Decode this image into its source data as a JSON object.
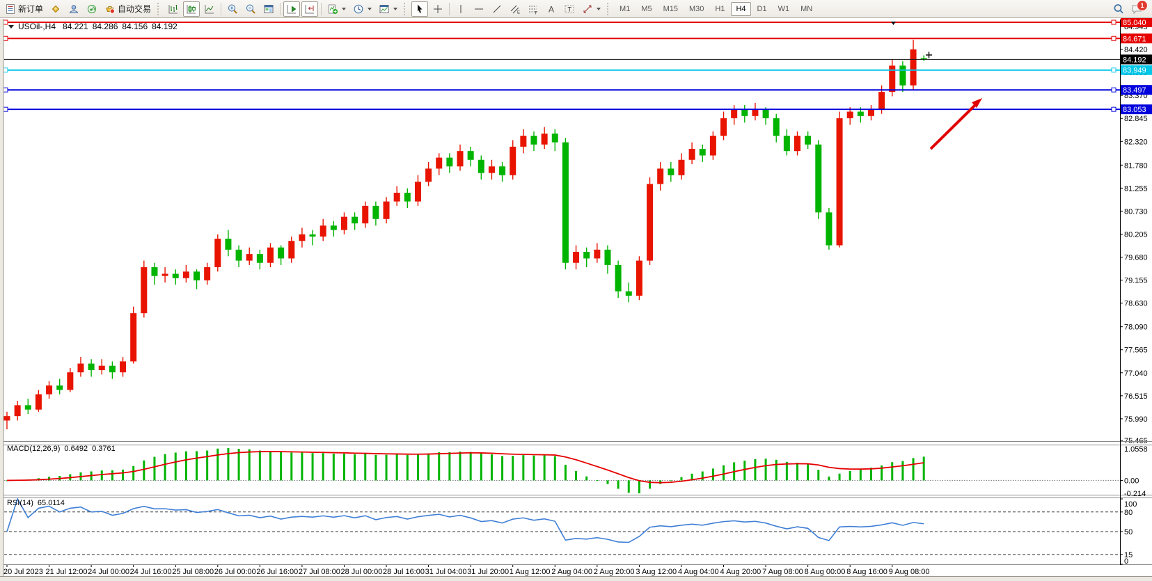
{
  "toolbar": {
    "new_order_label": "新订单",
    "autotrading_label": "自动交易",
    "timeframes": [
      "M1",
      "M5",
      "M15",
      "M30",
      "H1",
      "H4",
      "D1",
      "W1",
      "MN"
    ],
    "active_timeframe": "H4",
    "notification_count": "1"
  },
  "chart": {
    "symbol_period": "USOil-,H4",
    "open": "84.221",
    "high": "84.286",
    "low": "84.156",
    "close": "84.192"
  },
  "chart_data": {
    "type": "candlestick",
    "symbol": "USOil",
    "period": "H4",
    "colors": {
      "bull": "#e81400",
      "bear": "#00b400",
      "background": "#ffffff"
    },
    "candles": [
      [
        75.95,
        76.15,
        75.75,
        76.05
      ],
      [
        76.05,
        76.4,
        75.95,
        76.3
      ],
      [
        76.3,
        76.45,
        76.1,
        76.2
      ],
      [
        76.2,
        76.65,
        76.15,
        76.55
      ],
      [
        76.55,
        76.85,
        76.45,
        76.75
      ],
      [
        76.75,
        76.9,
        76.55,
        76.65
      ],
      [
        76.65,
        77.15,
        76.6,
        77.05
      ],
      [
        77.05,
        77.4,
        76.95,
        77.25
      ],
      [
        77.25,
        77.35,
        76.95,
        77.1
      ],
      [
        77.1,
        77.35,
        77.0,
        77.2
      ],
      [
        77.2,
        77.3,
        76.9,
        77.05
      ],
      [
        77.05,
        77.4,
        76.95,
        77.3
      ],
      [
        77.3,
        78.55,
        77.25,
        78.4
      ],
      [
        78.4,
        79.6,
        78.3,
        79.45
      ],
      [
        79.45,
        79.55,
        79.05,
        79.25
      ],
      [
        79.25,
        79.45,
        79.1,
        79.3
      ],
      [
        79.3,
        79.4,
        79.05,
        79.2
      ],
      [
        79.2,
        79.5,
        79.1,
        79.35
      ],
      [
        79.35,
        79.4,
        78.95,
        79.15
      ],
      [
        79.15,
        79.55,
        79.05,
        79.45
      ],
      [
        79.45,
        80.2,
        79.35,
        80.1
      ],
      [
        80.1,
        80.3,
        79.7,
        79.85
      ],
      [
        79.85,
        79.95,
        79.45,
        79.6
      ],
      [
        79.6,
        79.9,
        79.5,
        79.75
      ],
      [
        79.75,
        79.85,
        79.4,
        79.55
      ],
      [
        79.55,
        80.0,
        79.45,
        79.9
      ],
      [
        79.9,
        79.95,
        79.5,
        79.65
      ],
      [
        79.65,
        80.15,
        79.55,
        80.05
      ],
      [
        80.05,
        80.35,
        79.9,
        80.2
      ],
      [
        80.2,
        80.3,
        79.95,
        80.15
      ],
      [
        80.15,
        80.55,
        80.05,
        80.4
      ],
      [
        80.4,
        80.5,
        80.15,
        80.3
      ],
      [
        80.3,
        80.7,
        80.2,
        80.6
      ],
      [
        80.6,
        80.7,
        80.3,
        80.45
      ],
      [
        80.45,
        80.95,
        80.35,
        80.85
      ],
      [
        80.85,
        80.95,
        80.4,
        80.55
      ],
      [
        80.55,
        81.05,
        80.45,
        80.95
      ],
      [
        80.95,
        81.3,
        80.85,
        81.15
      ],
      [
        81.15,
        81.25,
        80.8,
        80.95
      ],
      [
        80.95,
        81.55,
        80.85,
        81.4
      ],
      [
        81.4,
        81.85,
        81.3,
        81.7
      ],
      [
        81.7,
        82.05,
        81.55,
        81.95
      ],
      [
        81.95,
        82.05,
        81.6,
        81.75
      ],
      [
        81.75,
        82.25,
        81.65,
        82.1
      ],
      [
        82.1,
        82.2,
        81.75,
        81.9
      ],
      [
        81.9,
        82.0,
        81.45,
        81.6
      ],
      [
        81.6,
        81.9,
        81.45,
        81.75
      ],
      [
        81.75,
        81.85,
        81.4,
        81.55
      ],
      [
        81.55,
        82.35,
        81.45,
        82.2
      ],
      [
        82.2,
        82.6,
        82.05,
        82.45
      ],
      [
        82.45,
        82.55,
        82.1,
        82.25
      ],
      [
        82.25,
        82.65,
        82.15,
        82.5
      ],
      [
        82.5,
        82.6,
        82.1,
        82.3
      ],
      [
        82.3,
        82.4,
        79.4,
        79.55
      ],
      [
        79.55,
        79.95,
        79.4,
        79.8
      ],
      [
        79.8,
        79.9,
        79.45,
        79.65
      ],
      [
        79.65,
        80.0,
        79.55,
        79.85
      ],
      [
        79.85,
        79.95,
        79.3,
        79.5
      ],
      [
        79.5,
        79.6,
        78.75,
        78.9
      ],
      [
        78.9,
        79.1,
        78.65,
        78.8
      ],
      [
        78.8,
        79.7,
        78.7,
        79.6
      ],
      [
        79.6,
        81.5,
        79.5,
        81.35
      ],
      [
        81.35,
        81.85,
        81.2,
        81.7
      ],
      [
        81.7,
        81.85,
        81.4,
        81.55
      ],
      [
        81.55,
        82.05,
        81.45,
        81.9
      ],
      [
        81.9,
        82.3,
        81.8,
        82.15
      ],
      [
        82.15,
        82.25,
        81.85,
        82.0
      ],
      [
        82.0,
        82.55,
        81.9,
        82.45
      ],
      [
        82.45,
        83.0,
        82.35,
        82.85
      ],
      [
        82.85,
        83.15,
        82.7,
        83.05
      ],
      [
        83.05,
        83.15,
        82.75,
        82.9
      ],
      [
        82.9,
        83.2,
        82.8,
        83.05
      ],
      [
        83.05,
        83.1,
        82.7,
        82.85
      ],
      [
        82.85,
        82.95,
        82.3,
        82.45
      ],
      [
        82.45,
        82.6,
        82.0,
        82.1
      ],
      [
        82.1,
        82.55,
        82.0,
        82.45
      ],
      [
        82.45,
        82.55,
        82.15,
        82.25
      ],
      [
        82.25,
        82.35,
        80.55,
        80.7
      ],
      [
        80.7,
        80.8,
        79.85,
        79.95
      ],
      [
        79.95,
        83.0,
        79.9,
        82.85
      ],
      [
        82.85,
        83.1,
        82.7,
        83.0
      ],
      [
        83.0,
        83.1,
        82.75,
        82.9
      ],
      [
        82.9,
        83.15,
        82.8,
        83.05
      ],
      [
        83.05,
        83.6,
        82.95,
        83.45
      ],
      [
        83.45,
        84.2,
        83.35,
        84.05
      ],
      [
        84.05,
        84.15,
        83.45,
        83.6
      ],
      [
        83.6,
        84.64,
        83.5,
        84.42
      ],
      [
        84.221,
        84.286,
        84.156,
        84.192
      ]
    ],
    "time_labels": [
      "20 Jul 2023",
      "21 Jul 12:00",
      "24 Jul 00:00",
      "24 Jul 16:00",
      "25 Jul 08:00",
      "26 Jul 00:00",
      "26 Jul 16:00",
      "27 Jul 08:00",
      "28 Jul 00:00",
      "28 Jul 16:00",
      "31 Jul 04:00",
      "31 Jul 20:00",
      "1 Aug 12:00",
      "2 Aug 04:00",
      "2 Aug 20:00",
      "3 Aug 12:00",
      "4 Aug 04:00",
      "4 Aug 20:00",
      "7 Aug 08:00",
      "8 Aug 00:00",
      "8 Aug 16:00",
      "9 Aug 08:00"
    ],
    "price_ticks": [
      "84.945",
      "84.420",
      "83.895",
      "83.370",
      "82.845",
      "82.320",
      "81.780",
      "81.255",
      "80.730",
      "80.205",
      "79.680",
      "79.155",
      "78.630",
      "78.090",
      "77.565",
      "77.040",
      "76.515",
      "75.990",
      "75.465"
    ],
    "hlines": [
      {
        "price": 85.04,
        "label": "85.040",
        "color": "#e60000"
      },
      {
        "price": 84.671,
        "label": "84.671",
        "color": "#e60000"
      },
      {
        "price": 83.949,
        "label": "83.949",
        "color": "#00c6e8"
      },
      {
        "price": 83.497,
        "label": "83.497",
        "color": "#0000dd"
      },
      {
        "price": 83.053,
        "label": "83.053",
        "color": "#0000dd"
      }
    ],
    "current_price": {
      "price": 84.192,
      "label": "84.192",
      "color": "#111111"
    },
    "indicators": {
      "macd": {
        "label": "MACD(12,26,9)",
        "main_value": "0.6492",
        "signal_value": "0.3761",
        "axis_labels": [
          "1.0558",
          "0.00",
          "-0.214"
        ],
        "histogram_color": "#00b400",
        "signal_color": "#e60000"
      },
      "rsi": {
        "label": "RSI(14)",
        "value": "65.0114",
        "levels": [
          "100",
          "80",
          "50",
          "15",
          "0"
        ],
        "dashed_levels": [
          80,
          50,
          15
        ],
        "line_color": "#3f7fd6"
      }
    },
    "annotations": {
      "arrow": {
        "type": "trend-arrow",
        "color": "#e00000",
        "from": [
          1337,
          214
        ],
        "to": [
          1411,
          141
        ]
      }
    }
  }
}
